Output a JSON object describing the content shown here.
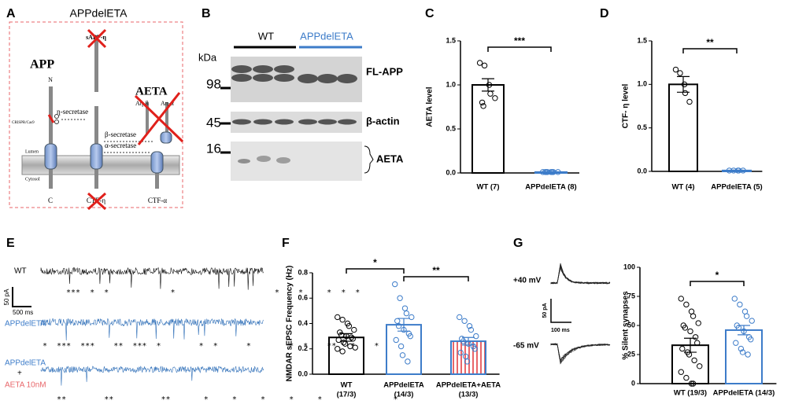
{
  "panel_letters": [
    "A",
    "B",
    "C",
    "D",
    "E",
    "F",
    "G"
  ],
  "diagram": {
    "title": "APPdelETA",
    "app": "APP",
    "n": "N",
    "c": "C",
    "sapp": "sAPP-η",
    "eta_secretase": "η-secretase",
    "crispr": "CRISPR/Cas9",
    "lumen": "Lumen",
    "cytosol": "Cytosol",
    "beta_secretase": "β-secretase",
    "alpha_secretase": "α-secretase",
    "aeta": "AETA",
    "aeta_beta": "Aη-β",
    "aeta_alpha": "Aη-α",
    "ctf_eta": "CTF-η",
    "ctf_alpha": "CTF-α"
  },
  "blot": {
    "kda": "kDa",
    "markers": [
      "98",
      "45",
      "16"
    ],
    "groups": [
      "WT",
      "APPdelETA"
    ],
    "bands": [
      "FL-APP",
      "β-actin",
      "AETA"
    ]
  },
  "traces_e": {
    "rows": [
      {
        "label": "WT",
        "stars": "***  *  *             *                     *    *     *  *  *"
      },
      {
        "label": "APPdelETA",
        "stars": "*  ***  ***    **  ***  *        *  *      *        *  *    **   *    *"
      },
      {
        "label": "APPdelETA",
        "label2": "+",
        "label3": "AETA 10nM",
        "stars": "   **        **          **       *     *     *     *     *               *"
      }
    ],
    "scale_y": "50 pA",
    "scale_x": "500 ms"
  },
  "traces_g": {
    "labels": [
      "+40 mV",
      "-65 mV"
    ],
    "scale_y": "50 pA",
    "scale_x": "100 ms"
  },
  "chart_data": [
    {
      "type": "bar",
      "ylabel": "AETA level",
      "categories": [
        "WT (7)",
        "APPdelETA (8)"
      ],
      "values": [
        1.0,
        0.01
      ],
      "errors": [
        0.07,
        0.005
      ],
      "points": [
        [
          1.25,
          1.22,
          1.0,
          0.9,
          0.85,
          0.8,
          0.76
        ],
        [
          0.01,
          0.01,
          0.01,
          0.01,
          0.01,
          0.01,
          0.01,
          0.01
        ]
      ],
      "colors": [
        "#000000",
        "#3d7cc9"
      ],
      "ylim": [
        0,
        1.5
      ],
      "yticks": [
        {
          "value": 0,
          "label": "0.0"
        },
        {
          "value": 0.5,
          "label": "0.5"
        },
        {
          "value": 1,
          "label": "1.0"
        },
        {
          "value": 1.5,
          "label": "1.5"
        }
      ],
      "significance": [
        "***"
      ]
    },
    {
      "type": "bar",
      "ylabel": "CTF- η level",
      "categories": [
        "WT (4)",
        "APPdelETA (5)"
      ],
      "values": [
        1.0,
        0.01
      ],
      "errors": [
        0.09,
        0.005
      ],
      "points": [
        [
          1.17,
          1.13,
          1.0,
          0.9,
          0.8
        ],
        [
          0.01,
          0.01,
          0.01,
          0.01,
          0.01
        ]
      ],
      "colors": [
        "#000000",
        "#3d7cc9"
      ],
      "ylim": [
        0,
        1.5
      ],
      "yticks": [
        {
          "value": 0,
          "label": "0.0"
        },
        {
          "value": 0.5,
          "label": "0.5"
        },
        {
          "value": 1,
          "label": "1.0"
        },
        {
          "value": 1.5,
          "label": "1.5"
        }
      ],
      "significance": [
        "**"
      ]
    },
    {
      "type": "bar",
      "ylabel": "NMDAR sEPSC Frequency (Hz)",
      "categories": [
        "WT",
        "APPdelETA",
        "APPdelETA+AETA"
      ],
      "category_counts": [
        "(17/3)",
        "(14/3)",
        "(13/3)"
      ],
      "values": [
        0.29,
        0.39,
        0.26
      ],
      "errors": [
        0.03,
        0.05,
        0.03
      ],
      "points": [
        [
          0.45,
          0.43,
          0.4,
          0.38,
          0.35,
          0.33,
          0.31,
          0.3,
          0.29,
          0.28,
          0.27,
          0.25,
          0.24,
          0.22,
          0.21,
          0.2,
          0.18
        ],
        [
          0.71,
          0.6,
          0.52,
          0.48,
          0.45,
          0.42,
          0.38,
          0.35,
          0.32,
          0.3,
          0.27,
          0.22,
          0.15,
          0.1
        ],
        [
          0.45,
          0.42,
          0.38,
          0.35,
          0.3,
          0.28,
          0.26,
          0.24,
          0.22,
          0.2,
          0.17,
          0.14,
          0.1
        ]
      ],
      "colors": [
        "#000000",
        "#3d7cc9",
        "#3d7cc9"
      ],
      "hatch_color": "#e8666a",
      "ylim": [
        0,
        0.8
      ],
      "yticks": [
        {
          "value": 0,
          "label": "0.0"
        },
        0.2,
        0.4,
        0.6,
        0.8
      ],
      "significance": [
        "*",
        "**"
      ]
    },
    {
      "type": "bar",
      "ylabel": "% Silent synapses",
      "categories": [
        "WT (19/3)",
        "APPdelETA (14/3)"
      ],
      "values": [
        33,
        46
      ],
      "errors": [
        6,
        4
      ],
      "points": [
        [
          73,
          68,
          62,
          58,
          52,
          50,
          48,
          45,
          40,
          35,
          30,
          27,
          25,
          20,
          15,
          10,
          5,
          0,
          0
        ],
        [
          73,
          68,
          62,
          58,
          54,
          50,
          48,
          45,
          40,
          38,
          35,
          30,
          27,
          25
        ]
      ],
      "colors": [
        "#000000",
        "#3d7cc9"
      ],
      "ylim": [
        0,
        100
      ],
      "yticks": [
        0,
        25,
        50,
        75,
        100
      ],
      "significance": [
        "*"
      ]
    }
  ]
}
